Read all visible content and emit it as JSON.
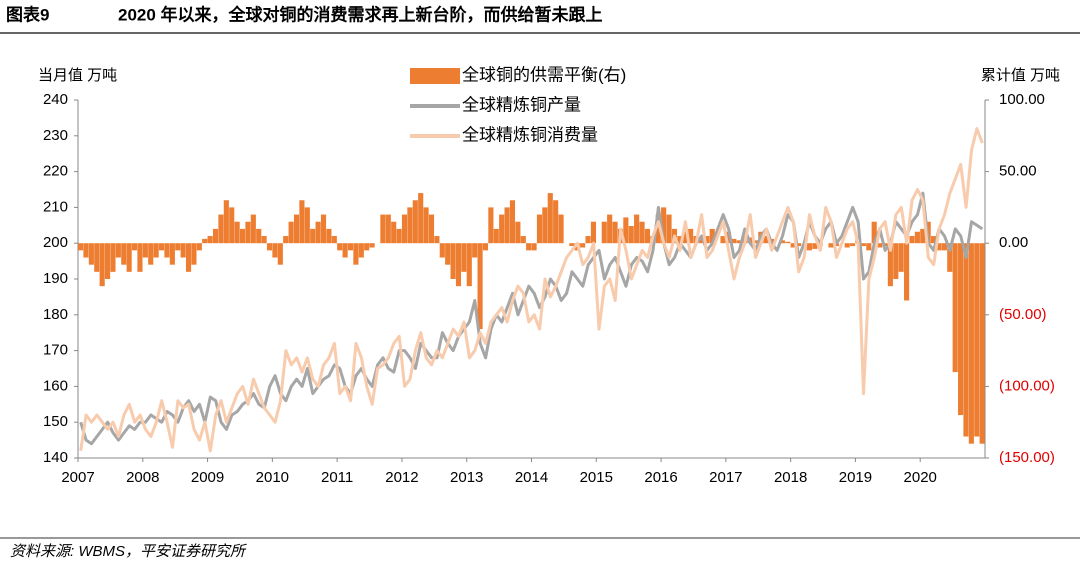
{
  "header": {
    "figure_number": "图表9",
    "title": "2020 年以来，全球对铜的消费需求再上新台阶，而供给暂未跟上"
  },
  "footer": {
    "source": "资料来源: WBMS，平安证券研究所"
  },
  "chart_data": {
    "type": "combo",
    "y_label": "当月值 万吨",
    "y2_label": "累计值 万吨",
    "categories": [
      "2007",
      null,
      null,
      null,
      null,
      null,
      null,
      null,
      null,
      null,
      null,
      null,
      "2008",
      null,
      null,
      null,
      null,
      null,
      null,
      null,
      null,
      null,
      null,
      null,
      "2009",
      null,
      null,
      null,
      null,
      null,
      null,
      null,
      null,
      null,
      null,
      null,
      "2010",
      null,
      null,
      null,
      null,
      null,
      null,
      null,
      null,
      null,
      null,
      null,
      "2011",
      null,
      null,
      null,
      null,
      null,
      null,
      null,
      null,
      null,
      null,
      null,
      "2012",
      null,
      null,
      null,
      null,
      null,
      null,
      null,
      null,
      null,
      null,
      null,
      "2013",
      null,
      null,
      null,
      null,
      null,
      null,
      null,
      null,
      null,
      null,
      null,
      "2014",
      null,
      null,
      null,
      null,
      null,
      null,
      null,
      null,
      null,
      null,
      null,
      "2015",
      null,
      null,
      null,
      null,
      null,
      null,
      null,
      null,
      null,
      null,
      null,
      "2016",
      null,
      null,
      null,
      null,
      null,
      null,
      null,
      null,
      null,
      null,
      null,
      "2017",
      null,
      null,
      null,
      null,
      null,
      null,
      null,
      null,
      null,
      null,
      null,
      "2018",
      null,
      null,
      null,
      null,
      null,
      null,
      null,
      null,
      null,
      null,
      null,
      "2019",
      null,
      null,
      null,
      null,
      null,
      null,
      null,
      null,
      null,
      null,
      null,
      "2020",
      null,
      null,
      null,
      null,
      null,
      null,
      null,
      null,
      null,
      null,
      null
    ],
    "series": [
      {
        "name": "全球铜的供需平衡(右)",
        "type": "bar",
        "axis": "y2",
        "color": "#ed7d31",
        "values": [
          -5,
          -10,
          -15,
          -20,
          -30,
          -25,
          -20,
          -10,
          -15,
          -20,
          -5,
          -20,
          -10,
          -15,
          -10,
          -5,
          -10,
          -15,
          -5,
          -10,
          -20,
          -15,
          -5,
          3,
          5,
          10,
          20,
          30,
          25,
          15,
          10,
          15,
          20,
          10,
          5,
          -5,
          -10,
          -15,
          5,
          15,
          20,
          30,
          25,
          10,
          15,
          20,
          10,
          5,
          -5,
          -10,
          -5,
          -15,
          -10,
          -5,
          -3,
          0,
          20,
          20,
          15,
          10,
          20,
          25,
          30,
          35,
          25,
          20,
          5,
          -10,
          -15,
          -25,
          -30,
          -20,
          -30,
          -10,
          -60,
          -5,
          25,
          10,
          20,
          25,
          30,
          15,
          5,
          -5,
          -5,
          20,
          25,
          35,
          30,
          20,
          0,
          -2,
          -5,
          -3,
          5,
          15,
          0,
          15,
          20,
          15,
          10,
          18,
          12,
          20,
          15,
          10,
          5,
          20,
          25,
          20,
          10,
          5,
          8,
          10,
          5,
          3,
          5,
          10,
          0,
          5,
          8,
          3,
          2,
          5,
          4,
          2,
          8,
          5,
          3,
          0,
          2,
          1,
          -3,
          -2,
          0,
          -5,
          -4,
          -2,
          0,
          -3,
          -2,
          0,
          -3,
          -2,
          5,
          -2,
          -5,
          15,
          -3,
          -2,
          -30,
          -25,
          -20,
          -40,
          5,
          8,
          10,
          15,
          5,
          -5,
          -5,
          -20,
          -90,
          -120,
          -135,
          -140,
          -135,
          -140
        ]
      },
      {
        "name": "全球精炼铜产量",
        "type": "line",
        "color": "#a6a6a6",
        "values": [
          150,
          145,
          144,
          146,
          148,
          150,
          147,
          145,
          147,
          149,
          148,
          150,
          150,
          152,
          151,
          150,
          153,
          152,
          150,
          154,
          156,
          153,
          155,
          150,
          157,
          156,
          150,
          148,
          152,
          153,
          155,
          156,
          158,
          155,
          154,
          160,
          163,
          158,
          156,
          160,
          162,
          160,
          165,
          158,
          160,
          162,
          163,
          166,
          165,
          160,
          158,
          163,
          165,
          162,
          160,
          166,
          168,
          165,
          164,
          170,
          170,
          168,
          165,
          172,
          170,
          168,
          168,
          175,
          172,
          170,
          174,
          176,
          178,
          184,
          172,
          168,
          176,
          180,
          178,
          182,
          186,
          180,
          184,
          188,
          186,
          182,
          185,
          190,
          188,
          184,
          186,
          192,
          190,
          188,
          194,
          196,
          198,
          190,
          194,
          196,
          192,
          188,
          194,
          196,
          195,
          192,
          198,
          210,
          200,
          194,
          196,
          200,
          198,
          196,
          200,
          202,
          198,
          200,
          204,
          208,
          204,
          196,
          198,
          204,
          200,
          198,
          202,
          204,
          200,
          198,
          202,
          208,
          206,
          196,
          200,
          206,
          202,
          200,
          204,
          206,
          200,
          202,
          206,
          210,
          206,
          190,
          192,
          200,
          204,
          198,
          200,
          206,
          204,
          202,
          206,
          208,
          214,
          200,
          198,
          204,
          202,
          198,
          204,
          202,
          196,
          206,
          205,
          204
        ]
      },
      {
        "name": "全球精炼铜消费量",
        "type": "line",
        "color": "#f8cbad",
        "values": [
          142,
          152,
          150,
          152,
          150,
          148,
          150,
          146,
          152,
          155,
          150,
          152,
          148,
          146,
          150,
          156,
          150,
          143,
          156,
          154,
          155,
          148,
          145,
          150,
          142,
          152,
          156,
          150,
          154,
          158,
          160,
          155,
          162,
          158,
          154,
          152,
          150,
          156,
          170,
          166,
          168,
          164,
          168,
          162,
          160,
          166,
          168,
          172,
          158,
          160,
          156,
          172,
          168,
          160,
          155,
          165,
          166,
          168,
          172,
          174,
          160,
          162,
          170,
          175,
          168,
          166,
          170,
          168,
          172,
          176,
          174,
          178,
          168,
          170,
          175,
          172,
          178,
          180,
          182,
          178,
          184,
          188,
          186,
          178,
          180,
          176,
          190,
          185,
          188,
          192,
          196,
          198,
          200,
          194,
          196,
          200,
          176,
          188,
          190,
          184,
          204,
          198,
          190,
          194,
          198,
          196,
          202,
          206,
          200,
          196,
          202,
          198,
          206,
          196,
          200,
          208,
          196,
          198,
          202,
          206,
          198,
          190,
          196,
          200,
          208,
          196,
          200,
          204,
          198,
          202,
          206,
          210,
          206,
          192,
          196,
          208,
          202,
          198,
          210,
          206,
          196,
          200,
          204,
          206,
          200,
          158,
          190,
          196,
          204,
          206,
          198,
          208,
          210,
          200,
          212,
          215,
          212,
          196,
          194,
          204,
          208,
          214,
          218,
          222,
          210,
          226,
          232,
          228
        ]
      }
    ],
    "ylim": [
      140,
      240
    ],
    "yticks": [
      140,
      150,
      160,
      170,
      180,
      190,
      200,
      210,
      220,
      230,
      240
    ],
    "y2lim": [
      -150,
      100
    ],
    "y2ticks": [
      {
        "value": 100,
        "label": "100.00"
      },
      {
        "value": 50,
        "label": "50.00"
      },
      {
        "value": 0,
        "label": "0.00"
      },
      {
        "value": -50,
        "label": "(50.00)"
      },
      {
        "value": -100,
        "label": "(100.00)"
      },
      {
        "value": -150,
        "label": "(150.00)"
      }
    ],
    "y2tick_negative_color": "#e00000",
    "legend": "top"
  }
}
